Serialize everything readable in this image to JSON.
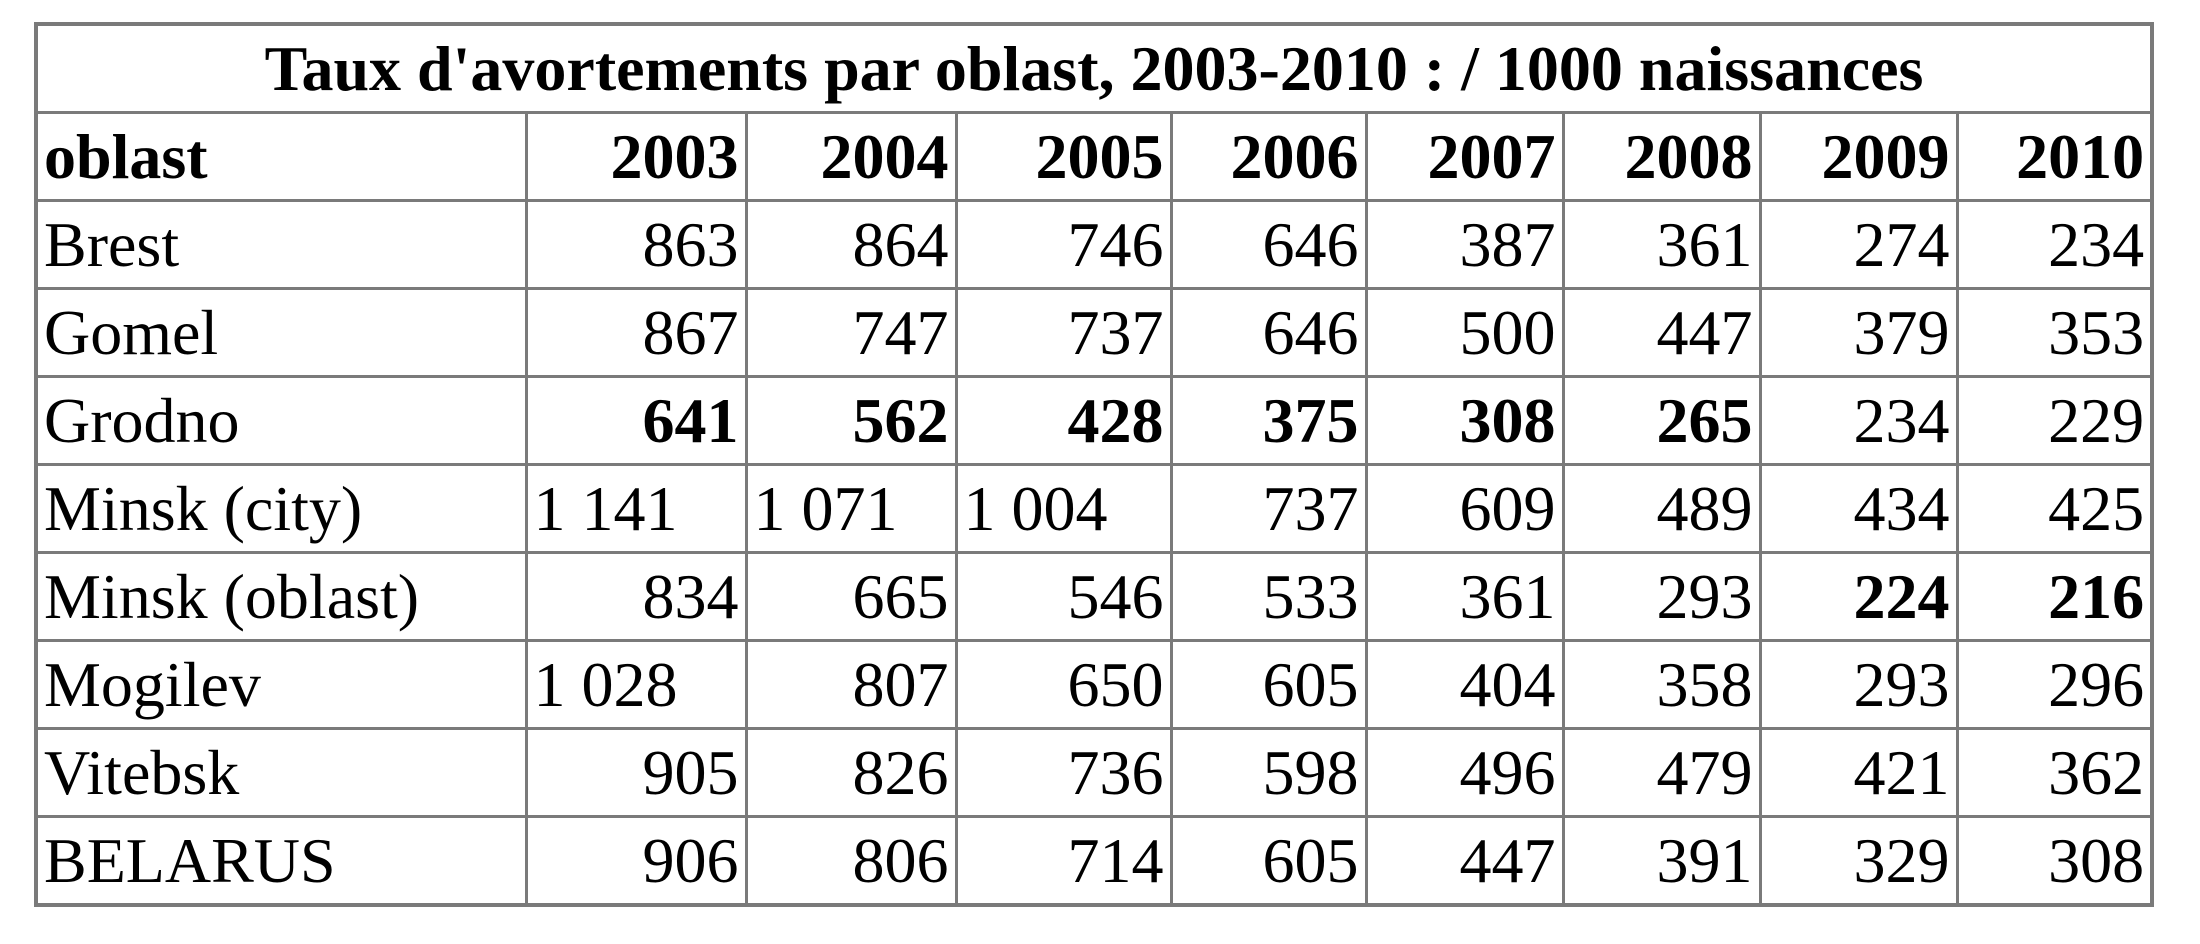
{
  "chart_data": {
    "type": "table",
    "title": "Taux d'avortements par oblast, 2003-2010 : / 1000 naissances",
    "header": [
      "oblast",
      "2003",
      "2004",
      "2005",
      "2006",
      "2007",
      "2008",
      "2009",
      "2010"
    ],
    "rows": [
      {
        "label": "Brest",
        "values": [
          "863",
          "864",
          "746",
          "646",
          "387",
          "361",
          "274",
          "234"
        ],
        "bold": [
          false,
          false,
          false,
          false,
          false,
          false,
          false,
          false
        ],
        "left_aligned": [
          false,
          false,
          false,
          false,
          false,
          false,
          false,
          false
        ]
      },
      {
        "label": "Gomel",
        "values": [
          "867",
          "747",
          "737",
          "646",
          "500",
          "447",
          "379",
          "353"
        ],
        "bold": [
          false,
          false,
          false,
          false,
          false,
          false,
          false,
          false
        ],
        "left_aligned": [
          false,
          false,
          false,
          false,
          false,
          false,
          false,
          false
        ]
      },
      {
        "label": "Grodno",
        "values": [
          "641",
          "562",
          "428",
          "375",
          "308",
          "265",
          "234",
          "229"
        ],
        "bold": [
          true,
          true,
          true,
          true,
          true,
          true,
          false,
          false
        ],
        "left_aligned": [
          false,
          false,
          false,
          false,
          false,
          false,
          false,
          false
        ]
      },
      {
        "label": "Minsk (city)",
        "values": [
          "1 141",
          "1 071",
          "1 004",
          "737",
          "609",
          "489",
          "434",
          "425"
        ],
        "bold": [
          false,
          false,
          false,
          false,
          false,
          false,
          false,
          false
        ],
        "left_aligned": [
          true,
          true,
          true,
          false,
          false,
          false,
          false,
          false
        ]
      },
      {
        "label": "Minsk (oblast)",
        "values": [
          "834",
          "665",
          "546",
          "533",
          "361",
          "293",
          "224",
          "216"
        ],
        "bold": [
          false,
          false,
          false,
          false,
          false,
          false,
          true,
          true
        ],
        "left_aligned": [
          false,
          false,
          false,
          false,
          false,
          false,
          false,
          false
        ]
      },
      {
        "label": "Mogilev",
        "values": [
          "1 028",
          "807",
          "650",
          "605",
          "404",
          "358",
          "293",
          "296"
        ],
        "bold": [
          false,
          false,
          false,
          false,
          false,
          false,
          false,
          false
        ],
        "left_aligned": [
          true,
          false,
          false,
          false,
          false,
          false,
          false,
          false
        ]
      },
      {
        "label": "Vitebsk",
        "values": [
          "905",
          "826",
          "736",
          "598",
          "496",
          "479",
          "421",
          "362"
        ],
        "bold": [
          false,
          false,
          false,
          false,
          false,
          false,
          false,
          false
        ],
        "left_aligned": [
          false,
          false,
          false,
          false,
          false,
          false,
          false,
          false
        ]
      },
      {
        "label": "BELARUS",
        "values": [
          "906",
          "806",
          "714",
          "605",
          "447",
          "391",
          "329",
          "308"
        ],
        "bold": [
          false,
          false,
          false,
          false,
          false,
          false,
          false,
          false
        ],
        "left_aligned": [
          false,
          false,
          false,
          false,
          false,
          false,
          false,
          false
        ]
      }
    ],
    "colors": {
      "border": "#7a7a7a",
      "text": "#000000",
      "background": "#ffffff"
    }
  }
}
